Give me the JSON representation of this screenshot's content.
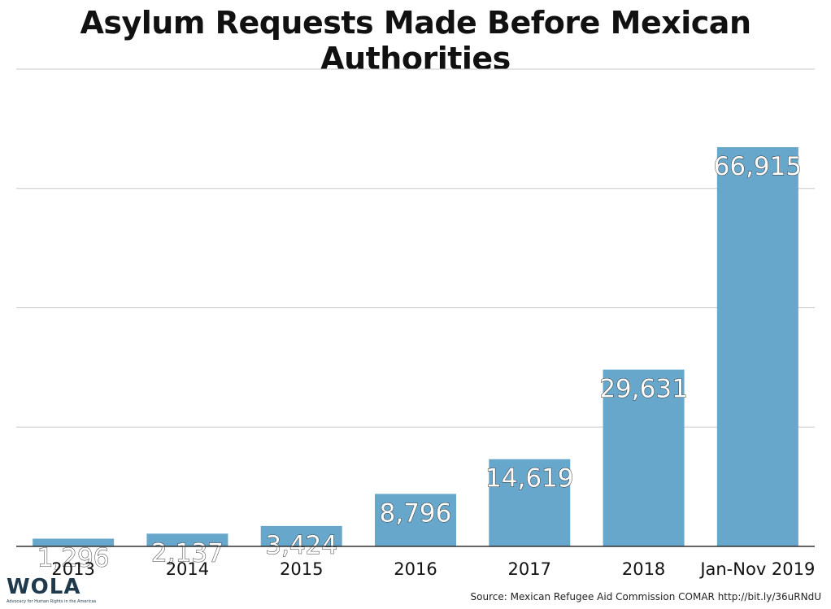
{
  "title": "Asylum Requests Made Before Mexican Authorities",
  "source": "Source: Mexican Refugee Aid Commission COMAR http://bit.ly/36uRNdU",
  "logo": {
    "text": "WOLA",
    "tagline": "Advocacy for Human Rights in the Americas"
  },
  "colors": {
    "bar": "#67a7cb",
    "grid": "#c8c8c8",
    "axis": "#333333",
    "label": "#ffffff"
  },
  "chart_data": {
    "type": "bar",
    "title": "Asylum Requests Made Before Mexican Authorities",
    "categories": [
      "2013",
      "2014",
      "2015",
      "2016",
      "2017",
      "2018",
      "Jan-Nov 2019"
    ],
    "values": [
      1296,
      2137,
      3424,
      8796,
      14619,
      29631,
      66915
    ],
    "data_labels": [
      "1,296",
      "2,137",
      "3,424",
      "8,796",
      "14,619",
      "29,631",
      "66,915"
    ],
    "xlabel": "",
    "ylabel": "",
    "ylim": [
      0,
      80000
    ],
    "grid": true,
    "legend": "none"
  }
}
